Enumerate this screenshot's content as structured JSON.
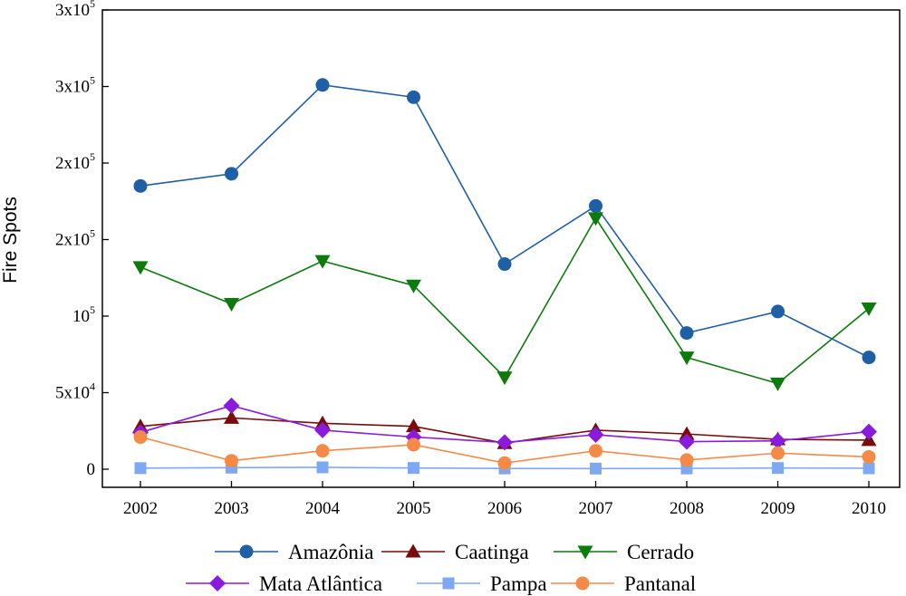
{
  "chart_data": {
    "type": "line",
    "title": "",
    "xlabel": "",
    "ylabel": "Fire Spots",
    "x": [
      "2002",
      "2003",
      "2004",
      "2005",
      "2006",
      "2007",
      "2008",
      "2009",
      "2010"
    ],
    "ylim": [
      0,
      300000
    ],
    "y_ticks": [
      {
        "value": 0,
        "base": "0",
        "exp": ""
      },
      {
        "value": 50000,
        "base": "5x10",
        "exp": "4"
      },
      {
        "value": 100000,
        "base": "10",
        "exp": "5"
      },
      {
        "value": 150000,
        "base": "2x10",
        "exp": "5"
      },
      {
        "value": 200000,
        "base": "2x10",
        "exp": "5"
      },
      {
        "value": 250000,
        "base": "3x10",
        "exp": "5"
      },
      {
        "value": 300000,
        "base": "3x10",
        "exp": "5"
      }
    ],
    "series": [
      {
        "name": "Amazônia",
        "color": "#1f5fa6",
        "marker": "circle",
        "values": [
          185000,
          193000,
          251000,
          243000,
          134000,
          172000,
          89000,
          103000,
          73000
        ]
      },
      {
        "name": "Caatinga",
        "color": "#7b0a0a",
        "marker": "triangle-up",
        "values": [
          28000,
          33500,
          30000,
          28000,
          17000,
          25500,
          23000,
          19500,
          19000
        ]
      },
      {
        "name": "Cerrado",
        "color": "#0c7a0c",
        "marker": "triangle-down",
        "values": [
          132000,
          108000,
          136000,
          120000,
          60000,
          164000,
          73000,
          56000,
          105000
        ]
      },
      {
        "name": "Mata Atlântica",
        "color": "#8a1bdc",
        "marker": "diamond",
        "values": [
          24000,
          41500,
          25500,
          21000,
          17500,
          22500,
          18000,
          18500,
          24500
        ]
      },
      {
        "name": "Pampa",
        "color": "#7fa8f2",
        "marker": "square",
        "values": [
          700,
          1000,
          1200,
          800,
          500,
          400,
          500,
          800,
          600
        ]
      },
      {
        "name": "Pantanal",
        "color": "#f58a47",
        "marker": "circle",
        "values": [
          21000,
          5500,
          12000,
          16000,
          4000,
          12000,
          6000,
          10500,
          8000
        ]
      }
    ],
    "legend": {
      "placement": "bottom",
      "columns": 3
    },
    "grid": false
  }
}
